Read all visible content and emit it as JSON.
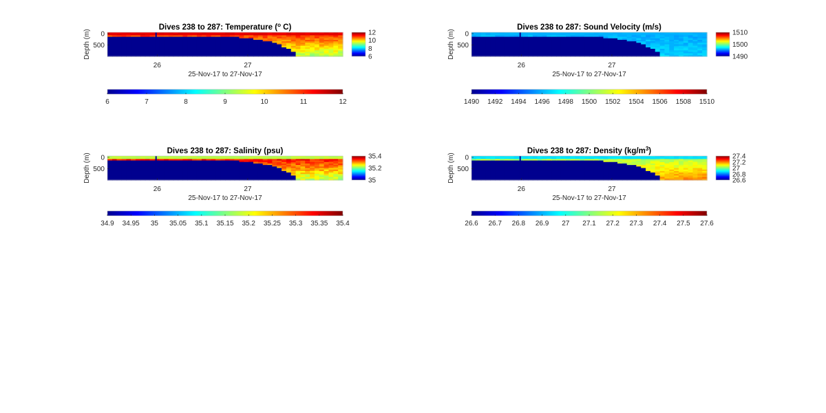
{
  "chart_data": [
    {
      "type": "heatmap",
      "title": "Dives 238 to 287: Temperature (",
      "title_unit": "o",
      "title_tail": " C)",
      "xlabel": "25-Nov-17 to 27-Nov-17",
      "ylabel": "Depth (m)",
      "x_ticks": [
        {
          "value": 26,
          "label": "26"
        },
        {
          "value": 27,
          "label": "27"
        }
      ],
      "xlim": [
        25.45,
        28.05
      ],
      "y_ticks": [
        {
          "value": 0,
          "label": "0"
        },
        {
          "value": 500,
          "label": "500"
        }
      ],
      "ylim": [
        -60,
        1000
      ],
      "clim": [
        6,
        12
      ],
      "cbar_ticks": [
        "12",
        "10",
        "8",
        "6"
      ],
      "hcbar_ticks": [
        "6",
        "7",
        "8",
        "9",
        "10",
        "11",
        "12"
      ],
      "surface_value": 11.4,
      "field": {
        "deep_left": 9.6,
        "deep_right": 9.2,
        "shallow": 10.9,
        "noise": 0.6
      },
      "profile_max_depth": [
        960,
        960,
        960,
        960,
        960,
        960,
        960,
        960,
        960,
        960,
        960,
        960,
        960,
        960,
        960,
        960,
        960,
        960,
        960,
        960,
        960,
        960,
        960,
        960,
        960,
        960,
        960,
        960,
        960,
        960,
        960,
        960,
        960,
        960,
        960,
        960,
        960,
        960,
        960,
        960,
        960,
        960,
        960,
        960,
        960,
        960,
        960,
        960,
        960,
        960
      ],
      "deep_fill_start": [
        100,
        100,
        105,
        110,
        110,
        110,
        115,
        110,
        120,
        110,
        110,
        115,
        110,
        120,
        115,
        110,
        120,
        115,
        110,
        120,
        110,
        110,
        115,
        110,
        120,
        115,
        110,
        120,
        170,
        150,
        180,
        210,
        240,
        280,
        330,
        380,
        450,
        540,
        640,
        760,
        960,
        960,
        960,
        960,
        960,
        960,
        960,
        960,
        960,
        960
      ]
    },
    {
      "type": "heatmap",
      "title": "Dives 238 to 287: Sound Velocity (m/s)",
      "xlabel": "25-Nov-17 to 27-Nov-17",
      "ylabel": "Depth (m)",
      "x_ticks": [
        {
          "value": 26,
          "label": "26"
        },
        {
          "value": 27,
          "label": "27"
        }
      ],
      "xlim": [
        25.45,
        28.05
      ],
      "y_ticks": [
        {
          "value": 0,
          "label": "0"
        },
        {
          "value": 500,
          "label": "500"
        }
      ],
      "ylim": [
        -60,
        1000
      ],
      "clim": [
        1490,
        1510
      ],
      "cbar_ticks": [
        "1510",
        "1500",
        "1490"
      ],
      "hcbar_ticks": [
        "1490",
        "1492",
        "1494",
        "1496",
        "1498",
        "1500",
        "1502",
        "1504",
        "1506",
        "1508",
        "1510"
      ],
      "surface_value": 1496,
      "field": {
        "deep_left": 1497,
        "deep_right": 1496.5,
        "shallow": 1496,
        "noise": 1.0
      },
      "deep_fill_start": [
        100,
        100,
        105,
        110,
        110,
        110,
        115,
        110,
        120,
        110,
        110,
        115,
        110,
        120,
        115,
        110,
        120,
        115,
        110,
        120,
        110,
        110,
        115,
        110,
        120,
        115,
        110,
        120,
        140,
        150,
        180,
        210,
        240,
        280,
        330,
        380,
        450,
        540,
        640,
        760,
        960,
        960,
        960,
        960,
        960,
        960,
        960,
        960,
        960,
        960
      ]
    },
    {
      "type": "heatmap",
      "title": "Dives 238 to 287: Salinity (psu)",
      "xlabel": "25-Nov-17 to 27-Nov-17",
      "ylabel": "Depth (m)",
      "x_ticks": [
        {
          "value": 26,
          "label": "26"
        },
        {
          "value": 27,
          "label": "27"
        }
      ],
      "xlim": [
        25.45,
        28.05
      ],
      "y_ticks": [
        {
          "value": 0,
          "label": "0"
        },
        {
          "value": 500,
          "label": "500"
        }
      ],
      "ylim": [
        -60,
        1000
      ],
      "clim": [
        34.9,
        35.4
      ],
      "cbar_ticks": [
        "35.4",
        "35.2",
        "35"
      ],
      "hcbar_ticks": [
        "34.9",
        "34.95",
        "35",
        "35.05",
        "35.1",
        "35.15",
        "35.2",
        "35.25",
        "35.3",
        "35.35",
        "35.4"
      ],
      "surface_value": 35.18,
      "field": {
        "deep_left": 35.22,
        "deep_right": 35.17,
        "shallow": 35.33,
        "noise": 0.06
      },
      "deep_fill_start": [
        100,
        100,
        105,
        110,
        110,
        110,
        115,
        110,
        120,
        110,
        110,
        115,
        110,
        120,
        115,
        110,
        120,
        115,
        110,
        120,
        110,
        110,
        115,
        110,
        120,
        115,
        110,
        120,
        140,
        150,
        180,
        210,
        240,
        280,
        330,
        380,
        450,
        540,
        640,
        760,
        960,
        960,
        960,
        960,
        960,
        960,
        960,
        960,
        960,
        960
      ]
    },
    {
      "type": "heatmap",
      "title": "Dives 238 to 287: Density (kg/m",
      "title_unit": "3",
      "title_tail": ")",
      "xlabel": "25-Nov-17 to 27-Nov-17",
      "ylabel": "Depth (m)",
      "x_ticks": [
        {
          "value": 26,
          "label": "26"
        },
        {
          "value": 27,
          "label": "27"
        }
      ],
      "xlim": [
        25.45,
        28.05
      ],
      "y_ticks": [
        {
          "value": 0,
          "label": "0"
        },
        {
          "value": 500,
          "label": "500"
        }
      ],
      "ylim": [
        -60,
        1000
      ],
      "clim": [
        26.6,
        27.6
      ],
      "cbar_ticks": [
        "27.4",
        "27.2",
        "27",
        "26.8",
        "26.6"
      ],
      "hcbar_ticks": [
        "26.6",
        "26.7",
        "26.8",
        "26.9",
        "27",
        "27.1",
        "27.2",
        "27.3",
        "27.4",
        "27.5",
        "27.6"
      ],
      "surface_value": 26.95,
      "field": {
        "deep_left": 27.25,
        "deep_right": 27.35,
        "shallow": 27.15,
        "noise": 0.08
      },
      "deep_fill_start": [
        100,
        100,
        105,
        110,
        110,
        110,
        115,
        110,
        120,
        110,
        110,
        115,
        110,
        120,
        115,
        110,
        120,
        115,
        110,
        120,
        110,
        110,
        115,
        110,
        120,
        115,
        110,
        120,
        140,
        150,
        180,
        210,
        240,
        280,
        330,
        380,
        450,
        540,
        640,
        760,
        960,
        960,
        960,
        960,
        960,
        960,
        960,
        960,
        960,
        960
      ]
    }
  ]
}
